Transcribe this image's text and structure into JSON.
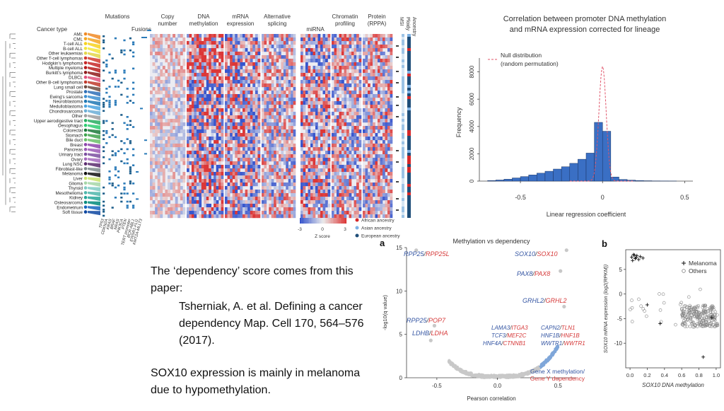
{
  "heatmap_figure": {
    "header_labels": [
      "Cancer type",
      "Mutations",
      "Fusions",
      "Copy number",
      "DNA methylation",
      "mRNA expression",
      "Alternative splicing",
      "miRNA",
      "Chromatin profiling",
      "Protein (RPPA)",
      "MSI",
      "Ploidy",
      "Ancestry"
    ],
    "cancer_types": [
      "AML",
      "CML",
      "T-cell ALL",
      "B-cell ALL",
      "Other leukaemias",
      "Other T-cell lymphomas",
      "Hodgkin's lymphoma",
      "Multiple myeloma",
      "Burkitt's lymphoma",
      "DLBCL",
      "Other B-cell lymphomas",
      "Lung small cell",
      "Prostate",
      "Ewing's sarcoma",
      "Neuroblastoma",
      "Medulloblastoma",
      "Chondrosarcoma",
      "Other",
      "Upper aerodigestive tract",
      "Oesophagus",
      "Colorectal",
      "Stomach",
      "Bile duct",
      "Breast",
      "Pancreas",
      "Urinary tract",
      "Ovary",
      "Lung NSC",
      "Fibroblast-like",
      "Melanoma",
      "Liver",
      "Glioma",
      "Thyroid",
      "Mesothelioma",
      "Kidney",
      "Osteosarcoma",
      "Endometrium",
      "Soft tissue"
    ],
    "type_colors": [
      "#f08a24",
      "#f5a623",
      "#f7d21e",
      "#f3e53b",
      "#e3d64a",
      "#d23a2f",
      "#c62828",
      "#b71c1c",
      "#8e1b1b",
      "#e0527a",
      "#c0392b",
      "#6d4c41",
      "#2e6fb7",
      "#3d8fd1",
      "#1f78b4",
      "#4aa3df",
      "#6baed6",
      "#9e9e9e",
      "#27ae60",
      "#2ecc71",
      "#1b7a3a",
      "#3fa34d",
      "#6abf69",
      "#8e44ad",
      "#9b59b6",
      "#7b4fa0",
      "#a569bd",
      "#5b2c6f",
      "#7f8c8d",
      "#111111",
      "#c9e26b",
      "#a5d6a7",
      "#80cbc4",
      "#4db6ac",
      "#26a69a",
      "#00897b",
      "#1565c0",
      "#0d47a1"
    ],
    "gene_labels": [
      "TP53",
      "CDKN2A",
      "KRAS",
      "BRAF",
      "NRAS",
      "PIK3CA",
      "PTEN",
      "TERT promoter",
      "BCR-ABL1",
      "EWSR1-FLI1",
      "KMT2A-MLLT3"
    ],
    "legend": {
      "scale_ticks": [
        "-3",
        "0",
        "3"
      ],
      "scale_label": "Z score",
      "ancestry": [
        {
          "label": "African ancestry",
          "color": "#d62728"
        },
        {
          "label": "Asian ancestry",
          "color": "#7fb2e5"
        },
        {
          "label": "European ancestry",
          "color": "#1f4e79"
        }
      ]
    }
  },
  "histogram": {
    "chart_data": {
      "type": "bar",
      "title": "Correlation between promoter DNA methylation and mRNA expression corrected for lineage",
      "xlabel": "Linear regression coefficient",
      "ylabel": "Frequency",
      "xlim": [
        -0.75,
        0.55
      ],
      "ylim": [
        0,
        8600
      ],
      "xticks": [
        "-0.5",
        "0",
        "0.5"
      ],
      "yticks": [
        "0",
        "2000",
        "4000",
        "6000",
        "8000"
      ],
      "bin_width": 0.05,
      "bin_centers": [
        -0.675,
        -0.625,
        -0.575,
        -0.525,
        -0.475,
        -0.425,
        -0.375,
        -0.325,
        -0.275,
        -0.225,
        -0.175,
        -0.125,
        -0.075,
        -0.025,
        0.025,
        0.075,
        0.125,
        0.175,
        0.225,
        0.275,
        0.325,
        0.375,
        0.425
      ],
      "values": [
        40,
        80,
        140,
        230,
        330,
        450,
        580,
        720,
        880,
        1050,
        1300,
        1600,
        2050,
        4300,
        3650,
        300,
        120,
        70,
        40,
        25,
        15,
        10,
        5
      ],
      "null_label": "Null distribution (random permutation)"
    }
  },
  "body_text": {
    "line1": "The ‘dependency’ score comes from this paper:",
    "citation": "Tsherniak, A. et al. Defining a cancer dependency Map. Cell 170, 564–576 (2017).",
    "line2": "SOX10 expression is mainly in melanoma due to hypomethylation."
  },
  "volcano": {
    "panel_label": "a",
    "chart_data": {
      "type": "scatter",
      "title": "Methylation vs dependency",
      "xlabel": "Pearson correlation",
      "ylabel": "-log10(q value)",
      "xlim": [
        -0.75,
        0.65
      ],
      "ylim": [
        0,
        15
      ],
      "xticks": [
        "-0.5",
        "0.0",
        "0.5"
      ],
      "yticks": [
        "0",
        "5",
        "10",
        "15"
      ],
      "highlighted": [
        {
          "gene_x": "RPP25",
          "gene_y": "RPP25L",
          "x": -0.67,
          "y": 14.7
        },
        {
          "gene_x": "SOX10",
          "gene_y": "SOX10",
          "x": 0.57,
          "y": 14.7
        },
        {
          "gene_x": "PAX8",
          "gene_y": "PAX8",
          "x": 0.52,
          "y": 12.3
        },
        {
          "gene_x": "GRHL2",
          "gene_y": "GRHL2",
          "x": 0.55,
          "y": 8.2
        },
        {
          "gene_x": "RPP25",
          "gene_y": "POP7",
          "x": -0.52,
          "y": 6.0
        },
        {
          "gene_x": "LDHB",
          "gene_y": "LDHA",
          "x": -0.55,
          "y": 4.3
        }
      ],
      "labels": [
        {
          "gx": "RPP25",
          "gy": "RPP25L"
        },
        {
          "gx": "SOX10",
          "gy": "SOX10"
        },
        {
          "gx": "PAX8",
          "gy": "PAX8"
        },
        {
          "gx": "GRHL2",
          "gy": "GRHL2"
        },
        {
          "gx": "RPP25",
          "gy": "POP7"
        },
        {
          "gx": "LDHB",
          "gy": "LDHA"
        },
        {
          "gx": "LAMA3",
          "gy": "ITGA3"
        },
        {
          "gx": "TCF3",
          "gy": "MEF2C"
        },
        {
          "gx": "HNF4A",
          "gy": "CTNNB1"
        },
        {
          "gx": "CAPN2",
          "gy": "TLN1"
        },
        {
          "gx": "HNF1B",
          "gy": "HNF1B"
        },
        {
          "gx": "WWTR1",
          "gy": "WWTR1"
        }
      ],
      "legend_x": "Gene X methylation/",
      "legend_y": "Gene Y dependency"
    }
  },
  "sox10_scatter": {
    "panel_label": "b",
    "chart_data": {
      "type": "scatter",
      "xlabel": "SOX10 DNA methylation",
      "ylabel": "SOX10 mRNA expression (log2(RPKM))",
      "xlim": [
        -0.05,
        1.05
      ],
      "ylim": [
        -15,
        9
      ],
      "xticks": [
        "0.0",
        "0.2",
        "0.4",
        "0.6",
        "0.8",
        "1.0"
      ],
      "yticks": [
        "5",
        "0",
        "-5",
        "-10"
      ],
      "legend": [
        "Melanoma",
        "Others"
      ],
      "melanoma_points": [
        [
          0.02,
          7.5
        ],
        [
          0.04,
          8.0
        ],
        [
          0.06,
          7.2
        ],
        [
          0.08,
          7.8
        ],
        [
          0.1,
          7.0
        ],
        [
          0.12,
          7.6
        ],
        [
          0.03,
          6.8
        ],
        [
          0.07,
          7.4
        ],
        [
          0.2,
          -2.2
        ],
        [
          0.35,
          -6.0
        ],
        [
          0.95,
          -4.8
        ],
        [
          0.85,
          -12.8
        ],
        [
          0.15,
          7.3
        ],
        [
          0.05,
          7.9
        ]
      ]
    }
  }
}
